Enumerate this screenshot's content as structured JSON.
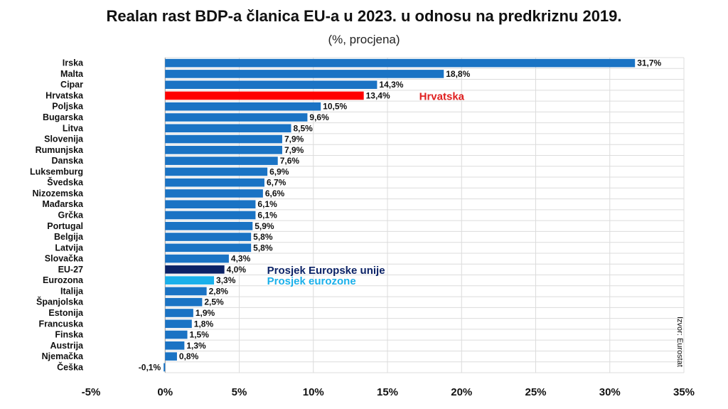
{
  "chart_data": {
    "type": "bar",
    "orientation": "horizontal",
    "title": "Realan rast BDP-a članica EU-a u 2023. u odnosu na predkriznu 2019.",
    "subtitle": "(%, procjena)",
    "categories": [
      "Irska",
      "Malta",
      "Cipar",
      "Hrvatska",
      "Poljska",
      "Bugarska",
      "Litva",
      "Slovenija",
      "Rumunjska",
      "Danska",
      "Luksemburg",
      "Švedska",
      "Nizozemska",
      "Mađarska",
      "Grčka",
      "Portugal",
      "Belgija",
      "Latvija",
      "Slovačka",
      "EU-27",
      "Eurozona",
      "Italija",
      "Španjolska",
      "Estonija",
      "Francuska",
      "Finska",
      "Austrija",
      "Njemačka",
      "Češka"
    ],
    "values": [
      31.7,
      18.8,
      14.3,
      13.4,
      10.5,
      9.6,
      8.5,
      7.9,
      7.9,
      7.6,
      6.9,
      6.7,
      6.6,
      6.1,
      6.1,
      5.9,
      5.8,
      5.8,
      4.3,
      4.0,
      3.3,
      2.8,
      2.5,
      1.9,
      1.8,
      1.5,
      1.3,
      0.8,
      -0.1
    ],
    "value_labels": [
      "31,7%",
      "18,8%",
      "14,3%",
      "13,4%",
      "10,5%",
      "9,6%",
      "8,5%",
      "7,9%",
      "7,9%",
      "7,6%",
      "6,9%",
      "6,7%",
      "6,6%",
      "6,1%",
      "6,1%",
      "5,9%",
      "5,8%",
      "5,8%",
      "4,3%",
      "4,0%",
      "3,3%",
      "2,8%",
      "2,5%",
      "1,9%",
      "1,8%",
      "1,5%",
      "1,3%",
      "0,8%",
      "-0,1%"
    ],
    "xlim": [
      -5,
      35
    ],
    "xticks": [
      -5,
      0,
      5,
      10,
      15,
      20,
      25,
      30,
      35
    ],
    "xtick_labels": [
      "-5%",
      "0%",
      "5%",
      "10%",
      "15%",
      "20%",
      "25%",
      "30%",
      "35%"
    ],
    "grid": true,
    "legend": "none",
    "colors": {
      "default": "#1a73c4",
      "Hrvatska": "#ff0000",
      "EU-27": "#0b2266",
      "Eurozona": "#1ab0ea"
    },
    "annotations": [
      {
        "category": "Hrvatska",
        "text": "Hrvatska",
        "color": "#e02020"
      },
      {
        "category": "EU-27",
        "text": "Prosjek Europske unije",
        "color": "#0b2266"
      },
      {
        "category": "Eurozona",
        "text": "Prosjek eurozone",
        "color": "#1ab0ea"
      }
    ],
    "source": "Izvor: Eurostat"
  }
}
